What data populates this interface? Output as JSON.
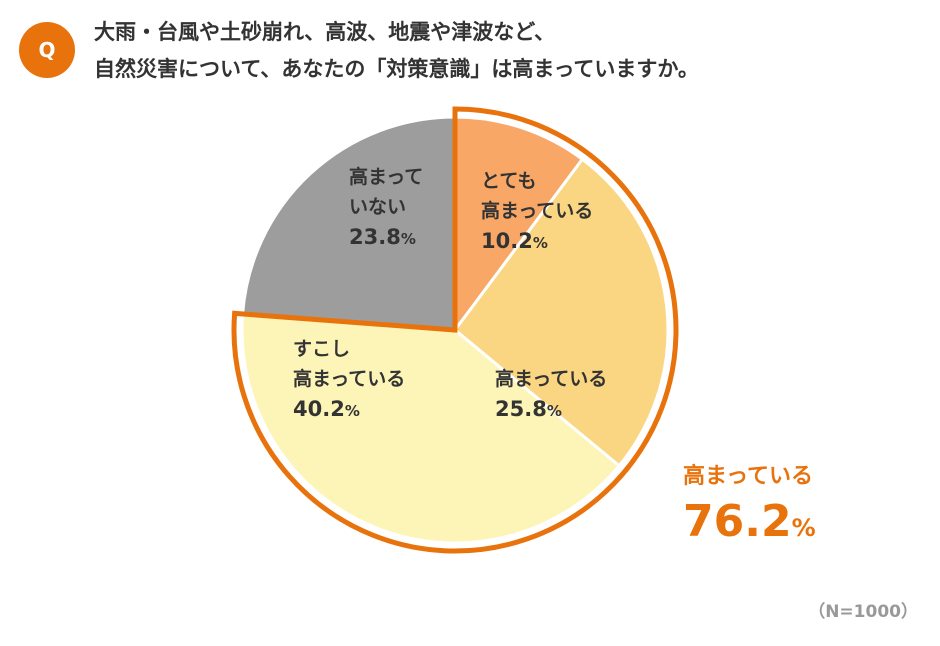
{
  "question": {
    "badge": "Q",
    "line1": "大雨・台風や土砂崩れ、高波、地震や津波など、",
    "line2": "自然災害について、あなたの「対策意識」は高まっていますか。"
  },
  "chart_data": {
    "type": "pie",
    "slices": [
      {
        "label_lines": [
          "とても",
          "高まっている"
        ],
        "value": 10.2,
        "value_text": "10.2",
        "color": "#f8a766"
      },
      {
        "label_lines": [
          "高まっている"
        ],
        "value": 25.8,
        "value_text": "25.8",
        "color": "#fbd682"
      },
      {
        "label_lines": [
          "すこし",
          "高まっている"
        ],
        "value": 40.2,
        "value_text": "40.2",
        "color": "#fdf5b7"
      },
      {
        "label_lines": [
          "高まって",
          "いない"
        ],
        "value": 23.8,
        "value_text": "23.8",
        "color": "#9d9d9d"
      }
    ],
    "percent_sign": "%",
    "highlight": {
      "label": "高まっている",
      "value": 76.2,
      "value_text": "76.2",
      "color": "#e8730c"
    },
    "note": "（N=1000）"
  }
}
